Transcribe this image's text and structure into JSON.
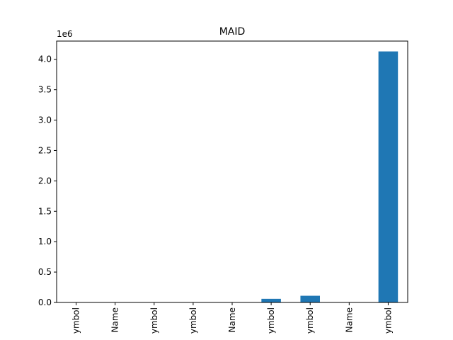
{
  "chart_data": {
    "type": "bar",
    "title": "MAID",
    "xlabel": "",
    "ylabel": "",
    "offset_label": "1e6",
    "categories": [
      "ymbol",
      "Name",
      "ymbol",
      "ymbol",
      "Name",
      "ymbol",
      "ymbol",
      "Name",
      "ymbol"
    ],
    "values": [
      0,
      0,
      0,
      0,
      0,
      60000,
      110000,
      0,
      4130000
    ],
    "ylim": [
      0,
      4300000
    ],
    "yticks": [
      0,
      500000,
      1000000,
      1500000,
      2000000,
      2500000,
      3000000,
      3500000,
      4000000
    ],
    "ytick_labels": [
      "0.0",
      "0.5",
      "1.0",
      "1.5",
      "2.0",
      "2.5",
      "3.0",
      "3.5",
      "4.0"
    ],
    "bar_color": "#1f77b4",
    "grid": false,
    "legend": "none"
  }
}
